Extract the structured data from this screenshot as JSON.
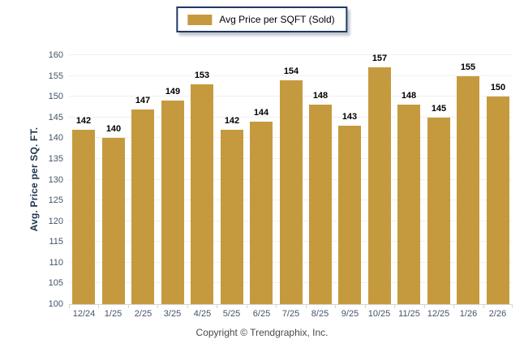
{
  "legend": {
    "label": "Avg Price per SQFT (Sold)"
  },
  "chart_data": {
    "type": "bar",
    "title": "",
    "categories": [
      "12/24",
      "1/25",
      "2/25",
      "3/25",
      "4/25",
      "5/25",
      "6/25",
      "7/25",
      "8/25",
      "9/25",
      "10/25",
      "11/25",
      "12/25",
      "1/26",
      "2/26"
    ],
    "values": [
      142,
      140,
      147,
      149,
      153,
      142,
      144,
      154,
      148,
      143,
      157,
      148,
      145,
      155,
      150
    ],
    "series": [
      {
        "name": "Avg Price per SQFT (Sold)",
        "values": [
          142,
          140,
          147,
          149,
          153,
          142,
          144,
          154,
          148,
          143,
          157,
          148,
          145,
          155,
          150
        ]
      }
    ],
    "xlabel": "",
    "ylabel": "Avg. Price per SQ. FT.",
    "ylim": [
      100,
      160
    ],
    "ytick_step": 5,
    "grid": "horizontal",
    "legend_position": "top-center",
    "value_labels": true
  },
  "colors": {
    "bar": "#C59A3E",
    "legend_border": "#1F3864",
    "grid": "#F0F0F0",
    "axis_line": "#D5D5D5",
    "tick_label": "#44546A",
    "value_label": "#000000",
    "y_title": "#1F3350",
    "footer_text": "#4A4A4A"
  },
  "footer": {
    "copyright": "Copyright © Trendgraphix, Inc."
  }
}
